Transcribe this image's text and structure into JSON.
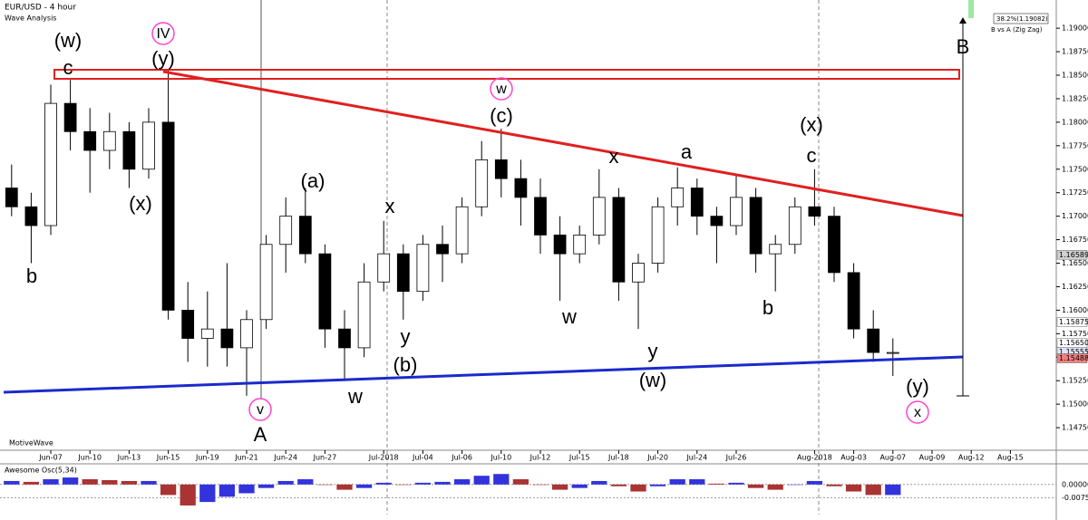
{
  "chart_data": [
    {
      "type": "candlestick",
      "title": "EUR/USD - 4 hour",
      "subtitle": "Wave Analysis",
      "watermark": "MotiveWave",
      "annotations": [
        "38.2%(1.19082)",
        "B vs A (Zig Zag)"
      ],
      "categories": [
        null,
        null,
        "Jun-07",
        null,
        "Jun-10",
        null,
        "Jun-13",
        null,
        "Jun-15",
        null,
        "Jun-19",
        null,
        "Jun-21",
        null,
        "Jun-24",
        null,
        "Jun-27",
        null,
        null,
        "Jul-2018",
        null,
        "Jul-04",
        null,
        "Jul-06",
        null,
        "Jul-10",
        null,
        "Jul-12",
        null,
        "Jul-15",
        null,
        "Jul-18",
        null,
        "Jul-20",
        null,
        "Jul-24",
        null,
        "Jul-26",
        null,
        null,
        null,
        "Aug-2018",
        null,
        "Aug-03",
        null,
        "Aug-07",
        null,
        "Aug-09",
        null,
        "Aug-12",
        null,
        "Aug-15",
        null
      ],
      "open": [
        1.173,
        1.171,
        1.169,
        1.182,
        1.179,
        1.177,
        1.179,
        1.175,
        1.18,
        1.16,
        1.157,
        1.158,
        1.156,
        1.159,
        1.167,
        1.17,
        1.166,
        1.158,
        1.156,
        1.163,
        1.166,
        1.162,
        1.167,
        1.166,
        1.171,
        1.176,
        1.174,
        1.172,
        1.168,
        1.166,
        1.168,
        1.172,
        1.163,
        1.165,
        1.171,
        1.173,
        1.17,
        1.169,
        1.172,
        1.166,
        1.167,
        1.171,
        1.17,
        1.164,
        1.158,
        1.1555,
        null,
        null,
        null,
        null,
        null,
        null,
        null
      ],
      "high": [
        1.1755,
        1.1725,
        1.184,
        1.1845,
        1.1815,
        1.181,
        1.18,
        1.1815,
        1.1855,
        1.163,
        1.162,
        1.165,
        1.16,
        1.168,
        1.172,
        1.173,
        1.167,
        1.16,
        1.165,
        1.1695,
        1.167,
        1.168,
        1.169,
        1.172,
        1.178,
        1.1793,
        1.176,
        1.174,
        1.17,
        1.169,
        1.175,
        1.173,
        1.166,
        1.172,
        1.1752,
        1.174,
        1.171,
        1.1745,
        1.173,
        1.168,
        1.172,
        1.175,
        1.171,
        1.165,
        1.16,
        1.157,
        null,
        null,
        null,
        null,
        null,
        null,
        null
      ],
      "low": [
        1.17,
        1.165,
        1.168,
        1.177,
        1.1725,
        1.175,
        1.173,
        1.174,
        1.159,
        1.1545,
        1.154,
        1.154,
        1.1509,
        1.158,
        1.164,
        1.165,
        1.156,
        1.1525,
        1.155,
        1.162,
        1.159,
        1.161,
        1.163,
        1.165,
        1.17,
        1.172,
        1.169,
        1.166,
        1.161,
        1.165,
        1.167,
        1.161,
        1.158,
        1.164,
        1.169,
        1.168,
        1.165,
        1.168,
        1.164,
        1.162,
        1.166,
        1.169,
        1.163,
        1.157,
        1.1545,
        1.153,
        null,
        null,
        null,
        null,
        null,
        null,
        null
      ],
      "close": [
        1.171,
        1.169,
        1.182,
        1.179,
        1.177,
        1.179,
        1.175,
        1.18,
        1.16,
        1.157,
        1.158,
        1.156,
        1.159,
        1.167,
        1.17,
        1.166,
        1.158,
        1.156,
        1.163,
        1.166,
        1.162,
        1.167,
        1.166,
        1.171,
        1.176,
        1.174,
        1.172,
        1.168,
        1.166,
        1.168,
        1.172,
        1.163,
        1.165,
        1.171,
        1.173,
        1.17,
        1.169,
        1.172,
        1.166,
        1.167,
        1.171,
        1.17,
        1.164,
        1.158,
        1.1555,
        1.1555,
        null,
        null,
        null,
        null,
        null,
        null,
        null
      ],
      "up_color": "#ffffff",
      "down_color": "#000000",
      "wick_color": "#000000",
      "ylim": [
        1.1451,
        1.193
      ],
      "yticks": [
        {
          "value": 1.1475,
          "label": "1.14750"
        },
        {
          "value": 1.15,
          "label": "1.15000"
        },
        {
          "value": 1.1525,
          "label": "1.15250"
        },
        {
          "value": 1.155,
          "label": "1.15500"
        },
        {
          "value": 1.1575,
          "label": "1.15750"
        },
        {
          "value": 1.16,
          "label": "1.16000"
        },
        {
          "value": 1.1625,
          "label": "1.16250"
        },
        {
          "value": 1.165,
          "label": "1.16500"
        },
        {
          "value": 1.1675,
          "label": "1.16750"
        },
        {
          "value": 1.17,
          "label": "1.17000"
        },
        {
          "value": 1.1725,
          "label": "1.17250"
        },
        {
          "value": 1.175,
          "label": "1.17500"
        },
        {
          "value": 1.1775,
          "label": "1.17750"
        },
        {
          "value": 1.18,
          "label": "1.18000"
        },
        {
          "value": 1.1825,
          "label": "1.18250"
        },
        {
          "value": 1.185,
          "label": "1.18500"
        },
        {
          "value": 1.1875,
          "label": "1.18750"
        },
        {
          "value": 1.19,
          "label": "1.19000"
        }
      ],
      "price_markers": [
        1.16589,
        1.15875,
        {
          "value": 1.1565,
          "label": "1.15650"
        },
        1.15555,
        1.15488
      ],
      "price_marker_colors": [
        "#d0d0d0",
        "#ffffff",
        "#ffffff",
        "#dde4f4",
        "#f08080"
      ],
      "wave_labels": [
        {
          "text": "(w)",
          "color": "#6a1b6a"
        },
        {
          "text": "c",
          "color": "#1a1acc"
        },
        {
          "text": "IV",
          "color": "#ff44cc",
          "circled": true
        },
        {
          "text": "(y)",
          "color": "#6a1b6a"
        },
        {
          "text": "(x)",
          "color": "#6a1b6a"
        },
        {
          "text": "b",
          "color": "#1a1acc"
        },
        {
          "text": "(a)",
          "color": "#6a1b6a"
        },
        {
          "text": "x",
          "color": "#1a1acc"
        },
        {
          "text": "y",
          "color": "#1a1acc"
        },
        {
          "text": "(b)",
          "color": "#6a1b6a"
        },
        {
          "text": "w",
          "color": "#1a1acc"
        },
        {
          "text": "v",
          "color": "#ff44cc",
          "circled": true
        },
        {
          "text": "A",
          "color": "#c8a0e8"
        },
        {
          "text": "w",
          "color": "#ff44cc",
          "circled": true
        },
        {
          "text": "(c)",
          "color": "#6a1b6a"
        },
        {
          "text": "x",
          "color": "#1a1acc"
        },
        {
          "text": "a",
          "color": "#1a1acc"
        },
        {
          "text": "w",
          "color": "#1a1acc"
        },
        {
          "text": "y",
          "color": "#1a1acc"
        },
        {
          "text": "(w)",
          "color": "#6a1b6a"
        },
        {
          "text": "(x)",
          "color": "#6a1b6a"
        },
        {
          "text": "c",
          "color": "#1a1acc"
        },
        {
          "text": "b",
          "color": "#1a1acc"
        },
        {
          "text": "(y)",
          "color": "#6a1b6a"
        },
        {
          "text": "x",
          "color": "#ff44cc",
          "circled": true
        },
        {
          "text": "B",
          "color": "#c8a0e8"
        }
      ]
    },
    {
      "type": "bar",
      "title": "Awesome Osc(5,34)",
      "values": [
        0.002,
        0.0015,
        0.003,
        0.004,
        0.003,
        0.0025,
        0.002,
        0.002,
        -0.006,
        -0.012,
        -0.01,
        -0.007,
        -0.005,
        -0.002,
        0.002,
        0.003,
        0.0,
        -0.003,
        -0.002,
        0.001,
        0.0,
        0.001,
        0.0015,
        0.003,
        0.005,
        0.006,
        0.003,
        0.0,
        -0.003,
        -0.002,
        0.002,
        -0.001,
        -0.004,
        -0.001,
        0.003,
        0.003,
        0.0005,
        0.001,
        -0.002,
        -0.003,
        0.0,
        0.002,
        -0.001,
        -0.004,
        -0.006,
        -0.006,
        null,
        null,
        null,
        null,
        null,
        null,
        null
      ],
      "up_color": "#3333dd",
      "down_color": "#aa3333",
      "ylim": [
        -0.0172,
        0.0113
      ],
      "yticks": [
        {
          "value": 0,
          "label": "0.00000"
        },
        -0.00754
      ]
    }
  ]
}
